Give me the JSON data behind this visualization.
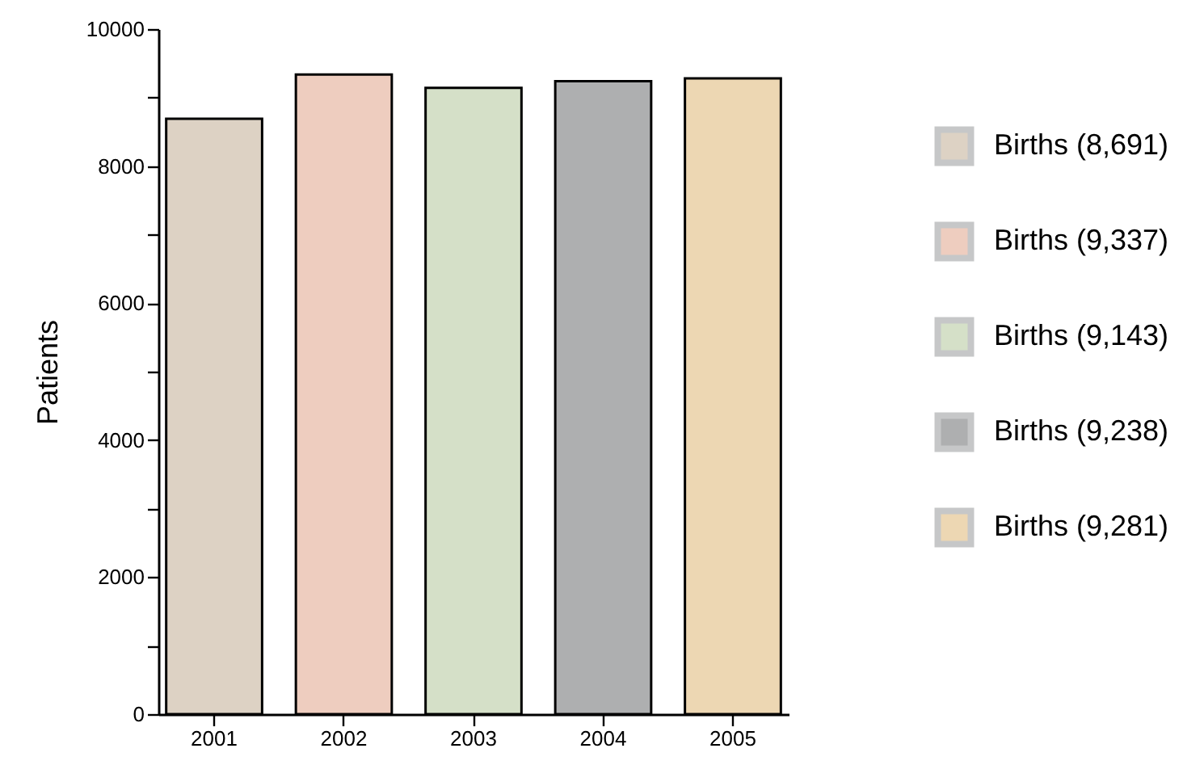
{
  "chart_data": {
    "type": "bar",
    "ylabel": "Patients",
    "categories": [
      "2001",
      "2002",
      "2003",
      "2004",
      "2005"
    ],
    "series": [
      {
        "name": "Births (8,691)",
        "color": "#ddd2c4",
        "values": [
          8691,
          null,
          null,
          null,
          null
        ]
      },
      {
        "name": "Births (9,337)",
        "color": "#eecdbf",
        "values": [
          null,
          9337,
          null,
          null,
          null
        ]
      },
      {
        "name": "Births (9,143)",
        "color": "#d5e0c8",
        "values": [
          null,
          null,
          9143,
          null,
          null
        ]
      },
      {
        "name": "Births (9,238)",
        "color": "#aeafb0",
        "values": [
          null,
          null,
          null,
          9238,
          null
        ]
      },
      {
        "name": "Births (9,281)",
        "color": "#edd7b3",
        "values": [
          null,
          null,
          null,
          null,
          9281
        ]
      }
    ],
    "ylim": [
      0,
      10000
    ],
    "yticks": [
      0,
      {
        "value": 1000,
        "label": null
      },
      2000,
      {
        "value": 3000,
        "label": null
      },
      4000,
      {
        "value": 5000,
        "label": null
      },
      6000,
      {
        "value": 7000,
        "label": null
      },
      8000,
      {
        "value": 9000,
        "label": null
      },
      10000
    ],
    "grid": false,
    "legend": "right"
  }
}
